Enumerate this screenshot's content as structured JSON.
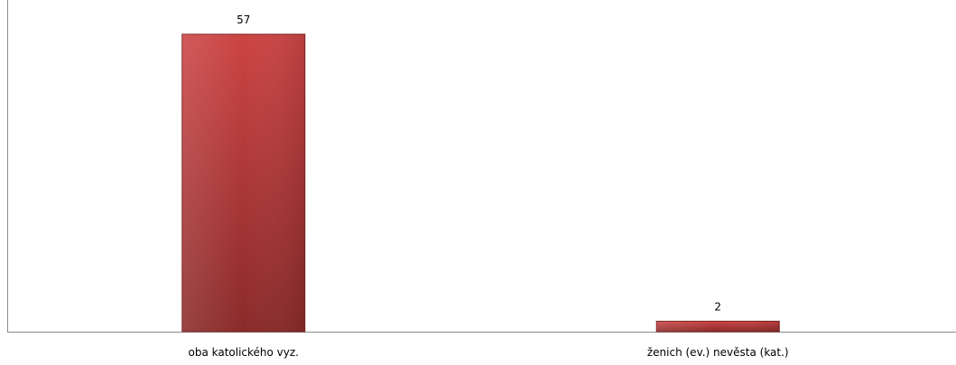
{
  "chart_data": {
    "type": "bar",
    "categories": [
      "oba katolického vyz.",
      "ženich (ev.) nevěsta (kat.)"
    ],
    "values": [
      57,
      2
    ],
    "data_labels": [
      "57",
      "2"
    ],
    "ylim": [
      0,
      60
    ],
    "grid": false,
    "legend": "none",
    "colors": {
      "bar_top": "#cc4444",
      "bar_bottom": "#8a2a2a",
      "bar_stroke": "#7a1f1f",
      "axis": "#8c8c8c"
    }
  }
}
